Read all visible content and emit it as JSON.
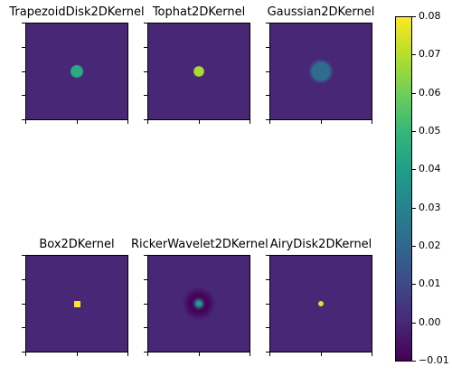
{
  "chart_data": {
    "type": "heatmap",
    "layout": "2x3 image grid with shared colorbar",
    "colormap": "viridis",
    "vmin": -0.01,
    "vmax": 0.08,
    "panels": [
      {
        "title": "TrapezoidDisk2DKernel",
        "kernel": "trapezoid",
        "peak": 0.045,
        "core": 0.08,
        "soft": 0.02
      },
      {
        "title": "Tophat2DKernel",
        "kernel": "tophat",
        "peak": 0.068,
        "core": 0.07,
        "soft": 0.01
      },
      {
        "title": "Gaussian2DKernel",
        "kernel": "gaussian",
        "peak": 0.022,
        "core": 0.12,
        "soft": 0.06
      },
      {
        "title": "Box2DKernel",
        "kernel": "box",
        "peak": 0.08,
        "core": 0.035,
        "soft": 0.0
      },
      {
        "title": "RickerWavelet2DKernel",
        "kernel": "ricker",
        "peak": 0.048,
        "core": 0.06,
        "soft": 0.0
      },
      {
        "title": "AiryDisk2DKernel",
        "kernel": "airy",
        "peak": 0.075,
        "core": 0.035,
        "soft": 0.006
      }
    ],
    "colorbar_ticks": [
      "0.08",
      "0.07",
      "0.06",
      "0.05",
      "0.04",
      "0.03",
      "0.02",
      "0.01",
      "0.00",
      "−0.01"
    ],
    "colorbar_tick_values": [
      0.08,
      0.07,
      0.06,
      0.05,
      0.04,
      0.03,
      0.02,
      0.01,
      0.0,
      -0.01
    ]
  }
}
